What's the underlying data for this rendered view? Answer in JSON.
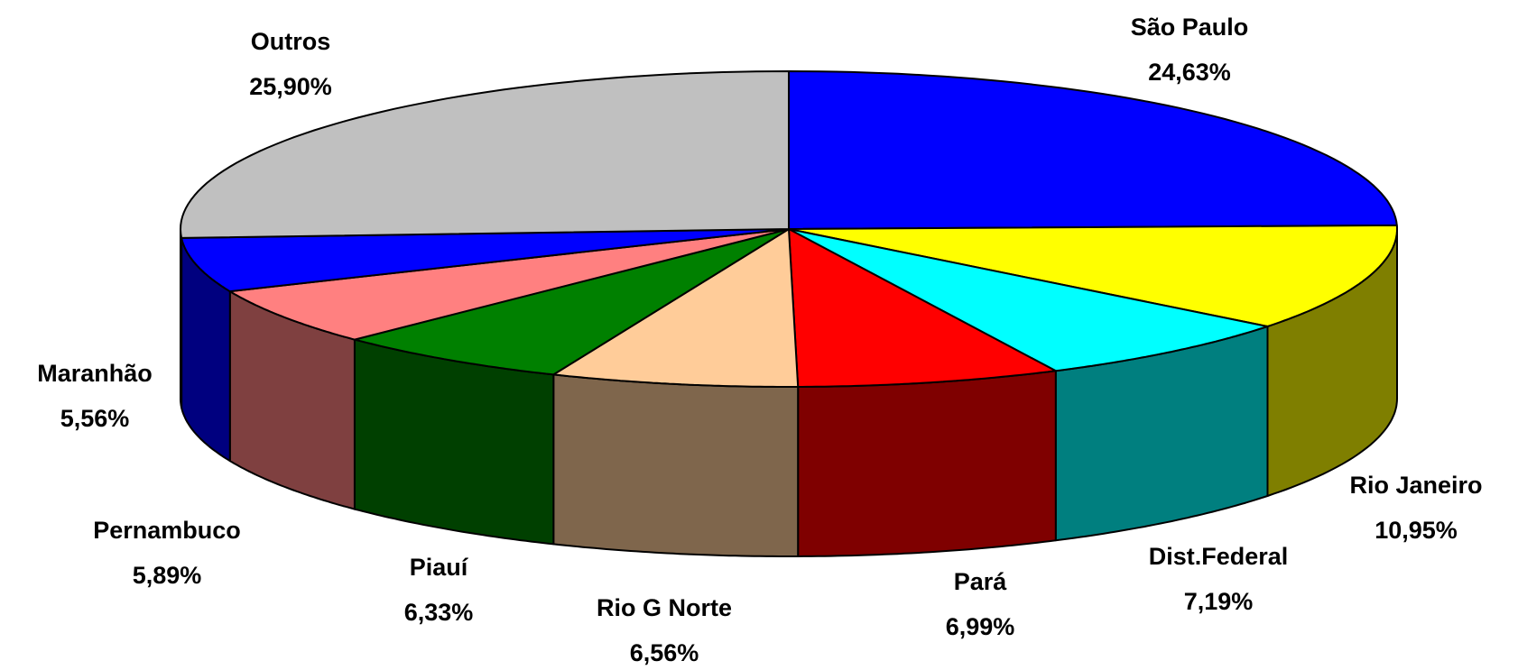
{
  "chart_data": {
    "type": "pie3d",
    "categories": [
      "São Paulo",
      "Rio Janeiro",
      "Dist.Federal",
      "Pará",
      "Rio G Norte",
      "Piauí",
      "Pernambuco",
      "Maranhão",
      "Outros"
    ],
    "values": [
      24.63,
      10.95,
      7.19,
      6.99,
      6.56,
      6.33,
      5.89,
      5.56,
      25.9
    ],
    "value_labels": [
      "24,63%",
      "10,95%",
      "7,19%",
      "6,99%",
      "6,56%",
      "6,33%",
      "5,89%",
      "5,56%",
      "25,90%"
    ],
    "colors": [
      "#0000ff",
      "#ffff00",
      "#00ffff",
      "#ff0000",
      "#ffcc99",
      "#008000",
      "#ff8080",
      "#0000ff",
      "#c0c0c0"
    ]
  }
}
